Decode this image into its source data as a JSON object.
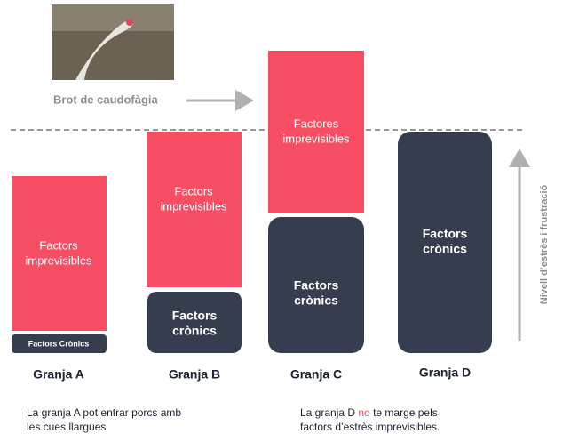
{
  "photo_caption": "Brot de caudofàgia",
  "farms": [
    {
      "name": "Granja A",
      "blocks": [
        {
          "lines": [
            "Factors",
            "imprevisibles"
          ]
        },
        {
          "lines": [
            "Factors Crònics"
          ]
        }
      ]
    },
    {
      "name": "Granja B",
      "blocks": [
        {
          "lines": [
            "Factors",
            "imprevisibles"
          ]
        },
        {
          "lines": [
            "Factors",
            "crònics"
          ]
        }
      ]
    },
    {
      "name": "Granja C",
      "blocks": [
        {
          "lines": [
            "Factores",
            "imprevisibles"
          ]
        },
        {
          "lines": [
            "Factors",
            "crònics"
          ]
        }
      ]
    },
    {
      "name": "Granja D",
      "blocks": [
        {
          "lines": [
            "Factors",
            "crònics"
          ]
        }
      ]
    }
  ],
  "axis_label": "Nivell d’estrès i frustració",
  "notes": [
    {
      "lines": [
        [
          "La granja A pot entrar porcs amb"
        ],
        [
          "les cues llargues"
        ]
      ]
    },
    {
      "lines": [
        [
          "La granja D ",
          "no",
          " te marge pels"
        ],
        [
          "factors d’estrès imprevisibles."
        ]
      ]
    }
  ]
}
